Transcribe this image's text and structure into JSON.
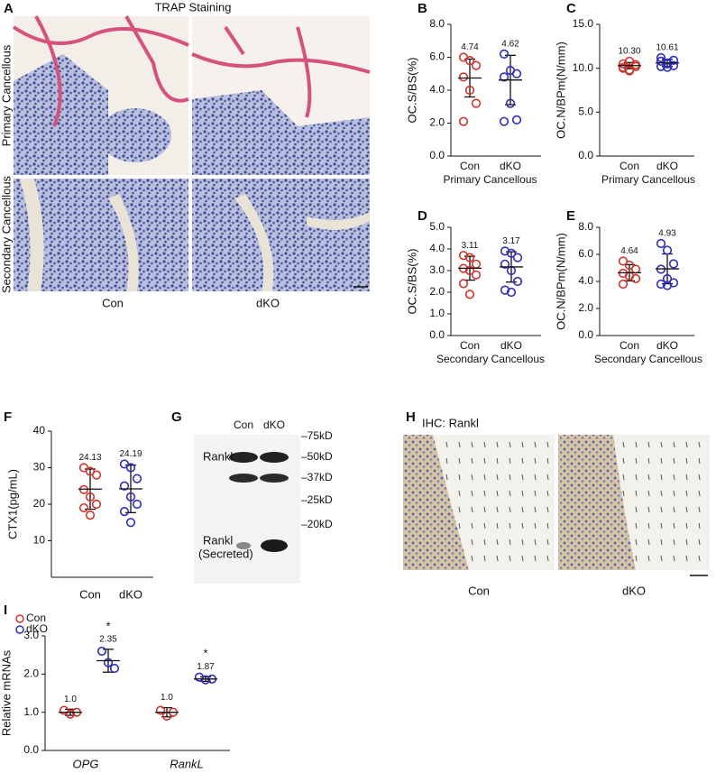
{
  "figure": {
    "panel_letters": [
      "A",
      "B",
      "C",
      "D",
      "E",
      "F",
      "G",
      "H",
      "I"
    ],
    "trap": {
      "title": "TRAP Staining",
      "rows": [
        "Primary Cancellous",
        "Secondary Cancellous"
      ],
      "columns": [
        "Con",
        "dKO"
      ]
    },
    "blot": {
      "lanes": [
        "Con",
        "dKO"
      ],
      "bands": [
        [
          "Rankl"
        ],
        [
          "Rankl",
          "(Secreted)"
        ]
      ],
      "markers": [
        "–75kD",
        "–50kD",
        "–37kD",
        "–25kD",
        "–20kD"
      ]
    },
    "ihc": {
      "title": "IHC: Rankl",
      "columns": [
        "Con",
        "dKO"
      ]
    }
  },
  "chart_data": [
    {
      "type": "dot",
      "ylabel": "OC.S/BS(%)",
      "xlabel": "Primary Cancellous",
      "categories": [
        "Con",
        "dKO"
      ],
      "ylim": [
        0,
        8
      ],
      "yticks": [
        {
          "value": 0,
          "label": "0.0"
        },
        {
          "value": 2,
          "label": "2.0"
        },
        {
          "value": 4,
          "label": "4.0"
        },
        {
          "value": 6,
          "label": "6.0"
        },
        {
          "value": 8,
          "label": "8.0"
        }
      ],
      "groups": [
        {
          "color": "#d0342c",
          "points": [
            6.0,
            5.8,
            5.5,
            4.8,
            4.0,
            3.2,
            2.1
          ],
          "mean": 4.74,
          "sd": 1.15
        },
        {
          "color": "#2e2eb8",
          "points": [
            6.2,
            5.2,
            5.0,
            4.8,
            3.2,
            2.2,
            2.1
          ],
          "mean": 4.62,
          "sd": 1.5
        }
      ]
    },
    {
      "type": "dot",
      "ylabel": "OC.N/BPm(N/mm)",
      "xlabel": "Primary Cancellous",
      "categories": [
        "Con",
        "dKO"
      ],
      "ylim": [
        0,
        15
      ],
      "yticks": [
        {
          "value": 0,
          "label": "0.0"
        },
        {
          "value": 5,
          "label": "5.0"
        },
        {
          "value": 10,
          "label": "10.0"
        },
        {
          "value": 15,
          "label": "15.0"
        }
      ],
      "groups": [
        {
          "color": "#d0342c",
          "points": [
            10.0,
            9.8,
            10.2,
            10.5,
            10.8,
            10.4,
            10.1,
            9.7
          ],
          "mean": 10.3,
          "mean_label": "10.30",
          "sd": 0.35
        },
        {
          "color": "#2e2eb8",
          "points": [
            10.2,
            10.5,
            10.9,
            11.2,
            10.6,
            10.3,
            10.8,
            10.1
          ],
          "mean": 10.61,
          "sd": 0.4
        }
      ]
    },
    {
      "type": "dot",
      "ylabel": "OC.S/BS(%)",
      "xlabel": "Secondary Cancellous",
      "categories": [
        "Con",
        "dKO"
      ],
      "ylim": [
        0,
        5
      ],
      "yticks": [
        {
          "value": 0,
          "label": "0.0"
        },
        {
          "value": 1,
          "label": "1.0"
        },
        {
          "value": 2,
          "label": "2.0"
        },
        {
          "value": 3,
          "label": "3.0"
        },
        {
          "value": 4,
          "label": "4.0"
        },
        {
          "value": 5,
          "label": "5.0"
        }
      ],
      "groups": [
        {
          "color": "#d0342c",
          "points": [
            3.7,
            3.6,
            3.3,
            3.1,
            3.0,
            2.8,
            2.4,
            1.9
          ],
          "mean": 3.11,
          "sd": 0.55
        },
        {
          "color": "#2e2eb8",
          "points": [
            3.9,
            3.8,
            3.6,
            3.3,
            3.0,
            2.5,
            2.1,
            2.0
          ],
          "mean": 3.17,
          "sd": 0.7
        }
      ]
    },
    {
      "type": "dot",
      "ylabel": "OC.N/BPm(N/mm)",
      "xlabel": "Secondary Cancellous",
      "categories": [
        "Con",
        "dKO"
      ],
      "ylim": [
        0,
        8
      ],
      "yticks": [
        {
          "value": 0,
          "label": "0.0"
        },
        {
          "value": 2,
          "label": "2.0"
        },
        {
          "value": 4,
          "label": "4.0"
        },
        {
          "value": 6,
          "label": "6.0"
        },
        {
          "value": 8,
          "label": "8.0"
        }
      ],
      "groups": [
        {
          "color": "#d0342c",
          "points": [
            5.5,
            5.2,
            4.9,
            4.6,
            4.4,
            4.2,
            3.8
          ],
          "mean": 4.64,
          "sd": 0.6
        },
        {
          "color": "#2e2eb8",
          "points": [
            6.8,
            6.3,
            5.3,
            4.9,
            4.2,
            3.9,
            3.8,
            3.7
          ],
          "mean": 4.93,
          "sd": 1.1
        }
      ]
    },
    {
      "type": "dot",
      "ylabel": "CTX1(pg/mL)",
      "categories": [
        "Con",
        "dKO"
      ],
      "ylim": [
        0,
        40
      ],
      "yticks": [
        10,
        20,
        30,
        40
      ],
      "groups": [
        {
          "color": "#d0342c",
          "points": [
            30,
            29,
            28,
            24,
            22,
            20,
            19,
            17
          ],
          "mean": 24.13,
          "sd": 5.5
        },
        {
          "color": "#2e2eb8",
          "points": [
            31,
            30,
            27,
            25,
            22,
            20,
            18,
            15
          ],
          "mean": 24.19,
          "sd": 6.5
        }
      ]
    },
    {
      "type": "dot_grouped",
      "ylabel": "Relative mRNAs",
      "categories": [
        "OPG",
        "RankL"
      ],
      "ylim": [
        0,
        3
      ],
      "yticks": [
        {
          "value": 0,
          "label": "0.0"
        },
        {
          "value": 1,
          "label": "1.0"
        },
        {
          "value": 2,
          "label": "2.0"
        },
        {
          "value": 3,
          "label": "3.0"
        }
      ],
      "series": [
        {
          "name": "Con",
          "color": "#d0342c",
          "points": [
            [
              1.05,
              0.95,
              1.0
            ],
            [
              1.05,
              0.9,
              1.0
            ]
          ],
          "means": [
            1.0,
            1.0
          ],
          "mean_labels": [
            "1.0",
            "1.0"
          ],
          "sds": [
            0.08,
            0.12
          ]
        },
        {
          "name": "dKO",
          "color": "#2e2eb8",
          "points": [
            [
              2.6,
              2.3,
              2.15
            ],
            [
              1.92,
              1.85,
              1.87
            ]
          ],
          "means": [
            2.35,
            1.87
          ],
          "sds": [
            0.3,
            0.06
          ],
          "annotations": [
            "*",
            "*"
          ]
        }
      ]
    }
  ]
}
